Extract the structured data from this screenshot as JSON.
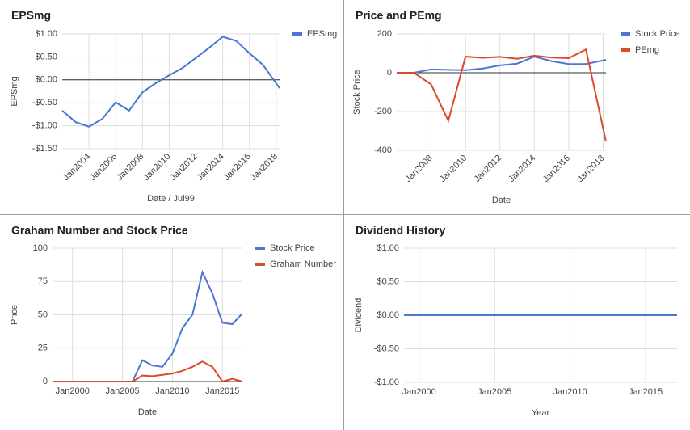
{
  "chart_data": [
    {
      "type": "line",
      "title": "EPSmg",
      "x_label": "Date / Jul99",
      "y_label": "EPSmg",
      "x": [
        "2002-01",
        "2003-01",
        "2004-01",
        "2005-01",
        "2006-01",
        "2007-01",
        "2008-01",
        "2009-01",
        "2010-01",
        "2011-01",
        "2012-01",
        "2013-01",
        "2014-01",
        "2015-01",
        "2016-01",
        "2017-01",
        "2018-04"
      ],
      "series": [
        {
          "name": "EPSmg",
          "color": "#4a77d4",
          "values": [
            -0.67,
            -0.92,
            -1.02,
            -0.85,
            -0.49,
            -0.67,
            -0.27,
            -0.07,
            0.1,
            0.26,
            0.48,
            0.7,
            0.94,
            0.85,
            0.58,
            0.33,
            -0.18
          ]
        }
      ],
      "xlim": [
        "2002-01",
        "2018-04"
      ],
      "xticks": [
        {
          "value": "2004-01",
          "label": "Jan2004"
        },
        {
          "value": "2006-01",
          "label": "Jan2006"
        },
        {
          "value": "2008-01",
          "label": "Jan2008"
        },
        {
          "value": "2010-01",
          "label": "Jan2010"
        },
        {
          "value": "2012-01",
          "label": "Jan2012"
        },
        {
          "value": "2014-01",
          "label": "Jan2014"
        },
        {
          "value": "2016-01",
          "label": "Jan2016"
        },
        {
          "value": "2018-01",
          "label": "Jan2018"
        }
      ],
      "ylim": [
        -1.5,
        1.0
      ],
      "yticks": [
        {
          "value": 1.0,
          "label": "$1.00"
        },
        {
          "value": 0.5,
          "label": "$0.50"
        },
        {
          "value": 0,
          "label": "$0.00"
        },
        {
          "value": -0.5,
          "label": "-$0.50"
        },
        {
          "value": -1.0,
          "label": "-$1.00"
        },
        {
          "value": -1.5,
          "label": "-$1.50"
        }
      ],
      "grid": true
    },
    {
      "type": "line",
      "title": "Price and PEmg",
      "x_label": "Date",
      "y_label": "Stock Price",
      "x": [
        "2006-01",
        "2007-01",
        "2008-01",
        "2009-01",
        "2010-01",
        "2011-01",
        "2012-01",
        "2013-01",
        "2014-01",
        "2015-01",
        "2016-01",
        "2017-01",
        "2018-03"
      ],
      "series": [
        {
          "name": "Stock Price",
          "color": "#4a77d4",
          "values": [
            0,
            0,
            17,
            15,
            13,
            22,
            38,
            47,
            83,
            60,
            45,
            45,
            67
          ]
        },
        {
          "name": "PEmg",
          "color": "#db4a2b",
          "values": [
            0,
            0,
            -60,
            -248,
            83,
            77,
            82,
            72,
            88,
            78,
            75,
            120,
            -355
          ]
        }
      ],
      "xlim": [
        "2006-01",
        "2018-03"
      ],
      "xticks": [
        {
          "value": "2008-01",
          "label": "Jan2008"
        },
        {
          "value": "2010-01",
          "label": "Jan2010"
        },
        {
          "value": "2012-01",
          "label": "Jan2012"
        },
        {
          "value": "2014-01",
          "label": "Jan2014"
        },
        {
          "value": "2016-01",
          "label": "Jan2016"
        },
        {
          "value": "2018-01",
          "label": "Jan2018"
        }
      ],
      "ylim": [
        -400,
        200
      ],
      "yticks": [
        200,
        0,
        -200,
        -400
      ],
      "grid": true
    },
    {
      "type": "line",
      "title": "Graham Number and Stock Price",
      "x_label": "Date",
      "y_label": "Price",
      "x": [
        "1998-01",
        "1999-01",
        "2000-01",
        "2001-01",
        "2002-01",
        "2003-01",
        "2004-01",
        "2005-01",
        "2006-01",
        "2007-01",
        "2008-01",
        "2009-01",
        "2010-01",
        "2011-01",
        "2012-01",
        "2013-01",
        "2014-01",
        "2015-01",
        "2016-01",
        "2017-01"
      ],
      "series": [
        {
          "name": "Stock Price",
          "color": "#4a77d4",
          "values": [
            0,
            0,
            0,
            0,
            0,
            0,
            0,
            0,
            0,
            16,
            12,
            11,
            21,
            40,
            50,
            82,
            66,
            44,
            43,
            51
          ]
        },
        {
          "name": "Graham Number",
          "color": "#db4a2b",
          "values": [
            0,
            0,
            0,
            0,
            0,
            0,
            0,
            0,
            0,
            4.5,
            4,
            5,
            6,
            8,
            11,
            15,
            11,
            0,
            2,
            0
          ]
        }
      ],
      "xlim": [
        "1998-01",
        "2017-01"
      ],
      "xticks": [
        {
          "value": "2000-01",
          "label": "Jan2000"
        },
        {
          "value": "2005-01",
          "label": "Jan2005"
        },
        {
          "value": "2010-01",
          "label": "Jan2010"
        },
        {
          "value": "2015-01",
          "label": "Jan2015"
        }
      ],
      "ylim": [
        0,
        100
      ],
      "yticks": [
        100,
        75,
        50,
        25,
        0
      ],
      "grid": true
    },
    {
      "type": "line",
      "title": "Dividend History",
      "x_label": "Year",
      "y_label": "Dividend",
      "x": [
        "1999-01",
        "2017-02"
      ],
      "values": [
        0,
        0
      ],
      "color": "#4a77d4",
      "xlim": [
        "1999-01",
        "2017-02"
      ],
      "xticks": [
        {
          "value": "2000-01",
          "label": "Jan2000"
        },
        {
          "value": "2005-01",
          "label": "Jan2005"
        },
        {
          "value": "2010-01",
          "label": "Jan2010"
        },
        {
          "value": "2015-01",
          "label": "Jan2015"
        }
      ],
      "ylim": [
        -1.0,
        1.0
      ],
      "yticks": [
        {
          "value": 1.0,
          "label": "$1.00"
        },
        {
          "value": 0.5,
          "label": "$0.50"
        },
        {
          "value": 0,
          "label": "$0.00"
        },
        {
          "value": -0.5,
          "label": "-$0.50"
        },
        {
          "value": -1.0,
          "label": "-$1.00"
        }
      ],
      "grid": true
    }
  ]
}
